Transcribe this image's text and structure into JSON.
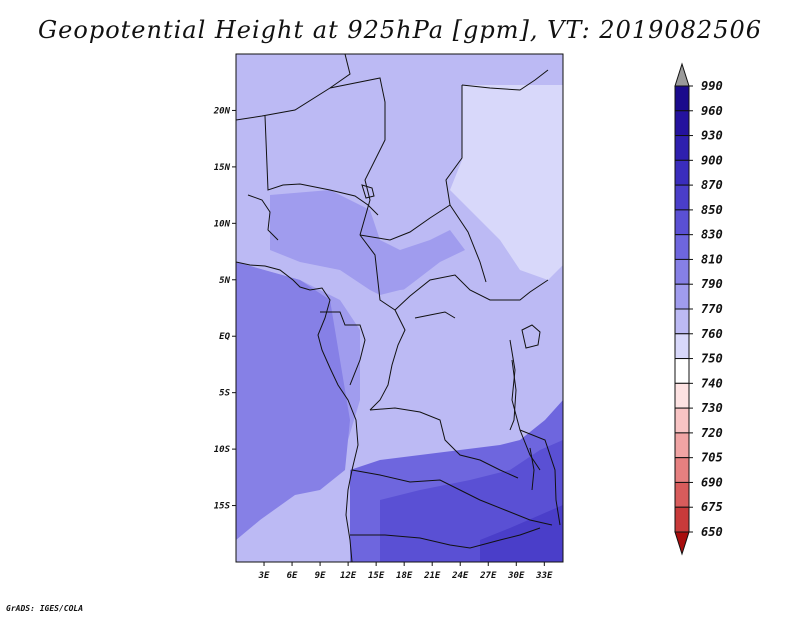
{
  "chart_data": {
    "type": "heatmap",
    "title": "Geopotential Height at 925hPa [gpm], VT: 2019082506",
    "variable": "Geopotential Height",
    "level": "925hPa",
    "units": "gpm",
    "valid_time": "2019082506",
    "x_ticks": [
      "3E",
      "6E",
      "9E",
      "12E",
      "15E",
      "18E",
      "21E",
      "24E",
      "27E",
      "30E",
      "33E"
    ],
    "y_ticks": [
      "20N",
      "15N",
      "10N",
      "5N",
      "EQ",
      "5S",
      "10S",
      "15S"
    ],
    "xlim": [
      0,
      35
    ],
    "ylim": [
      -20,
      25
    ],
    "colorbar": {
      "levels": [
        "990",
        "960",
        "930",
        "900",
        "870",
        "850",
        "830",
        "810",
        "790",
        "770",
        "760",
        "750",
        "740",
        "730",
        "720",
        "705",
        "690",
        "675",
        "650"
      ],
      "colors": [
        "#1a0a8c",
        "#24129e",
        "#2e1fae",
        "#3a2dbd",
        "#4a3ec9",
        "#5a50d4",
        "#6e66de",
        "#8680e6",
        "#a09cee",
        "#bcbaf4",
        "#d8d8fa",
        "#ffffff",
        "#fde2e2",
        "#f8c4c4",
        "#f0a4a4",
        "#e68080",
        "#d85c5c",
        "#c83a3a",
        "#b82222",
        "#a80e0e"
      ]
    },
    "field_regions": [
      {
        "name": "north-background",
        "level": "790"
      },
      {
        "name": "east-high",
        "level": "770"
      },
      {
        "name": "west-band",
        "level": "810"
      },
      {
        "name": "atlantic-band",
        "level": "830"
      },
      {
        "name": "central-basin",
        "level": "790"
      },
      {
        "name": "south-band",
        "level": "850"
      },
      {
        "name": "southeast-band",
        "level": "870"
      },
      {
        "name": "southeast-core",
        "level": "900"
      }
    ]
  },
  "footer": "GrADS: IGES/COLA"
}
